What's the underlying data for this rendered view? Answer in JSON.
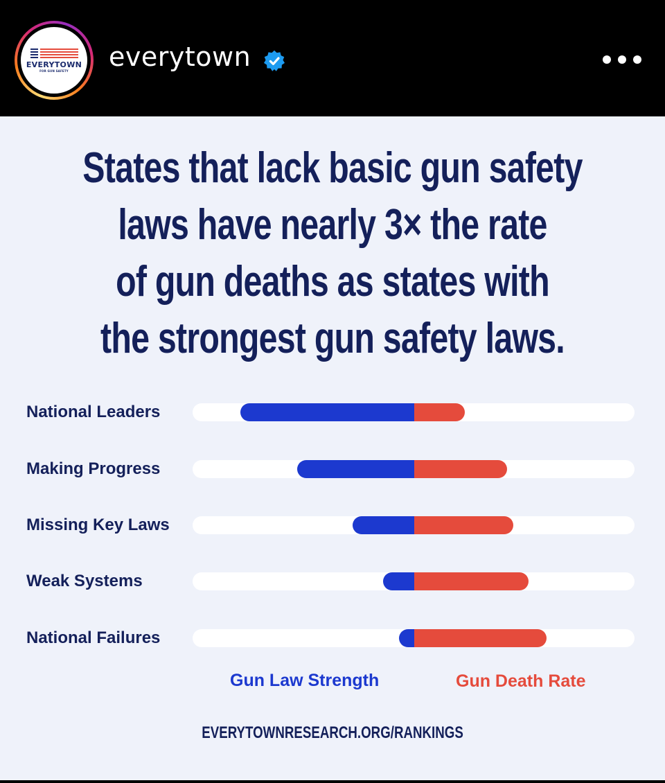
{
  "post": {
    "username": "everytown",
    "verified": true,
    "avatar": {
      "logo_word": "EVERYTOWN",
      "logo_subtitle": "FOR GUN SAFETY",
      "ring_style": "story-gradient"
    },
    "more_icon": "more-horizontal-icon"
  },
  "headline": {
    "lines": [
      "States that lack basic gun safety",
      "laws have nearly 3× the rate",
      "of gun deaths as states with",
      "the strongest gun safety laws."
    ]
  },
  "legend": {
    "blue_label": "Gun Law Strength",
    "red_label": "Gun Death Rate"
  },
  "footer": {
    "url": "EVERYTOWNRESEARCH.ORG/RANKINGS"
  },
  "colors": {
    "header_bg": "#000000",
    "card_bg": "#eff2fa",
    "navy_text": "#14205a",
    "blue_bar": "#1c39cf",
    "red_bar": "#e54b3c",
    "track": "#ffffff",
    "verified_badge": "#1d9bf0"
  },
  "chart_data": {
    "type": "bar",
    "subtype": "diverging-horizontal",
    "title": "States that lack basic gun safety laws have nearly 3× the rate of gun deaths as states with the strongest gun safety laws.",
    "categories": [
      "National Leaders",
      "Making Progress",
      "Missing Key Laws",
      "Weak Systems",
      "National Failures"
    ],
    "series": [
      {
        "name": "Gun Law Strength",
        "direction": "left",
        "color": "#1c39cf",
        "values": [
          79,
          53,
          28,
          14,
          7
        ]
      },
      {
        "name": "Gun Death Rate",
        "direction": "right",
        "color": "#e54b3c",
        "values": [
          23,
          42,
          45,
          52,
          60
        ]
      }
    ],
    "units": "percent of half-track width (relative, unlabeled)",
    "xlabel": "",
    "ylabel": "",
    "grid": false,
    "legend_position": "bottom",
    "source": "EVERYTOWNRESEARCH.ORG/RANKINGS"
  }
}
